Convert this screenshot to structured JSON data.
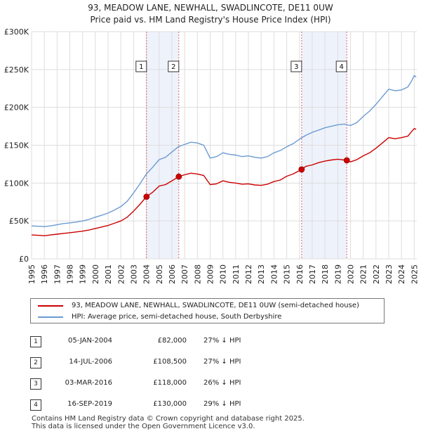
{
  "title_line1": "93, MEADOW LANE, NEWHALL, SWADLINCOTE, DE11 0UW",
  "title_line2": "Price paid vs. HM Land Registry's House Price Index (HPI)",
  "chart_data": {
    "type": "line",
    "xlim": [
      1995.0,
      2025.2
    ],
    "ylim": [
      0,
      300000
    ],
    "yticks": [
      0,
      50000,
      100000,
      150000,
      200000,
      250000,
      300000
    ],
    "ytick_labels": [
      "£0",
      "£50K",
      "£100K",
      "£150K",
      "£200K",
      "£250K",
      "£300K"
    ],
    "xticks": [
      1995,
      1996,
      1997,
      1998,
      1999,
      2000,
      2001,
      2002,
      2003,
      2004,
      2005,
      2006,
      2007,
      2008,
      2009,
      2010,
      2011,
      2012,
      2013,
      2014,
      2015,
      2016,
      2017,
      2018,
      2019,
      2020,
      2021,
      2022,
      2023,
      2024,
      2025
    ],
    "series": [
      {
        "name": "93, MEADOW LANE, NEWHALL, SWADLINCOTE, DE11 0UW (semi-detached house)",
        "color": "#cc0000",
        "points": [
          [
            1995.0,
            31500
          ],
          [
            1995.5,
            31000
          ],
          [
            1996.0,
            30500
          ],
          [
            1996.5,
            31500
          ],
          [
            1997.0,
            32500
          ],
          [
            1997.5,
            33500
          ],
          [
            1998.0,
            34500
          ],
          [
            1998.5,
            35500
          ],
          [
            1999.0,
            36500
          ],
          [
            1999.5,
            38000
          ],
          [
            2000.0,
            40000
          ],
          [
            2000.5,
            42000
          ],
          [
            2001.0,
            44000
          ],
          [
            2001.5,
            47000
          ],
          [
            2002.0,
            50000
          ],
          [
            2002.5,
            55000
          ],
          [
            2003.0,
            63000
          ],
          [
            2003.5,
            72000
          ],
          [
            2004.0,
            82000
          ],
          [
            2004.5,
            88000
          ],
          [
            2005.0,
            96000
          ],
          [
            2005.5,
            98000
          ],
          [
            2006.0,
            103000
          ],
          [
            2006.54,
            108500
          ],
          [
            2007.0,
            111000
          ],
          [
            2007.5,
            113000
          ],
          [
            2008.0,
            112000
          ],
          [
            2008.5,
            110000
          ],
          [
            2009.0,
            98000
          ],
          [
            2009.5,
            99000
          ],
          [
            2010.0,
            103000
          ],
          [
            2010.5,
            101000
          ],
          [
            2011.0,
            100000
          ],
          [
            2011.5,
            98500
          ],
          [
            2012.0,
            99000
          ],
          [
            2012.5,
            97500
          ],
          [
            2013.0,
            97000
          ],
          [
            2013.5,
            98500
          ],
          [
            2014.0,
            102000
          ],
          [
            2014.5,
            104000
          ],
          [
            2015.0,
            109000
          ],
          [
            2015.5,
            112000
          ],
          [
            2016.17,
            118000
          ],
          [
            2016.5,
            122000
          ],
          [
            2017.0,
            124000
          ],
          [
            2017.5,
            127000
          ],
          [
            2018.0,
            129000
          ],
          [
            2018.5,
            130500
          ],
          [
            2019.0,
            131500
          ],
          [
            2019.71,
            130000
          ],
          [
            2020.0,
            128000
          ],
          [
            2020.5,
            131000
          ],
          [
            2021.0,
            136000
          ],
          [
            2021.5,
            140000
          ],
          [
            2022.0,
            146000
          ],
          [
            2022.5,
            153000
          ],
          [
            2023.0,
            160000
          ],
          [
            2023.5,
            158500
          ],
          [
            2024.0,
            160000
          ],
          [
            2024.5,
            162000
          ],
          [
            2024.8,
            168000
          ],
          [
            2025.0,
            172000
          ],
          [
            2025.15,
            171000
          ]
        ]
      },
      {
        "name": "HPI: Average price, semi-detached house, South Derbyshire",
        "color": "#6b9bd2",
        "points": [
          [
            1995.0,
            43500
          ],
          [
            1995.5,
            43000
          ],
          [
            1996.0,
            42500
          ],
          [
            1996.5,
            43500
          ],
          [
            1997.0,
            45000
          ],
          [
            1997.5,
            46500
          ],
          [
            1998.0,
            47500
          ],
          [
            1998.5,
            48500
          ],
          [
            1999.0,
            50000
          ],
          [
            1999.5,
            52000
          ],
          [
            2000.0,
            55000
          ],
          [
            2000.5,
            57500
          ],
          [
            2001.0,
            60500
          ],
          [
            2001.5,
            64500
          ],
          [
            2002.0,
            69000
          ],
          [
            2002.5,
            76000
          ],
          [
            2003.0,
            87000
          ],
          [
            2003.5,
            99000
          ],
          [
            2004.0,
            112000
          ],
          [
            2004.5,
            121000
          ],
          [
            2005.0,
            131000
          ],
          [
            2005.5,
            134000
          ],
          [
            2006.0,
            141000
          ],
          [
            2006.5,
            148000
          ],
          [
            2007.0,
            151000
          ],
          [
            2007.5,
            154000
          ],
          [
            2008.0,
            153000
          ],
          [
            2008.5,
            150000
          ],
          [
            2009.0,
            133000
          ],
          [
            2009.5,
            135000
          ],
          [
            2010.0,
            140000
          ],
          [
            2010.5,
            138000
          ],
          [
            2011.0,
            137000
          ],
          [
            2011.5,
            135000
          ],
          [
            2012.0,
            136000
          ],
          [
            2012.5,
            134000
          ],
          [
            2013.0,
            133000
          ],
          [
            2013.5,
            135000
          ],
          [
            2014.0,
            140000
          ],
          [
            2014.5,
            143000
          ],
          [
            2015.0,
            148000
          ],
          [
            2015.5,
            152000
          ],
          [
            2016.0,
            158000
          ],
          [
            2016.5,
            163000
          ],
          [
            2017.0,
            167000
          ],
          [
            2017.5,
            170000
          ],
          [
            2018.0,
            173000
          ],
          [
            2018.5,
            175000
          ],
          [
            2019.0,
            177000
          ],
          [
            2019.5,
            178000
          ],
          [
            2020.0,
            176000
          ],
          [
            2020.5,
            180000
          ],
          [
            2021.0,
            188000
          ],
          [
            2021.5,
            195000
          ],
          [
            2022.0,
            204000
          ],
          [
            2022.5,
            214000
          ],
          [
            2023.0,
            224000
          ],
          [
            2023.5,
            222000
          ],
          [
            2024.0,
            223000
          ],
          [
            2024.5,
            227000
          ],
          [
            2024.8,
            235000
          ],
          [
            2025.0,
            242000
          ],
          [
            2025.15,
            240000
          ]
        ]
      }
    ],
    "transactions": [
      {
        "label": "1",
        "x": 2004.01,
        "price": 82000
      },
      {
        "label": "2",
        "x": 2006.54,
        "price": 108500
      },
      {
        "label": "3",
        "x": 2016.17,
        "price": 118000
      },
      {
        "label": "4",
        "x": 2019.71,
        "price": 130000
      }
    ],
    "shaded_spans": [
      [
        2004.01,
        2006.54
      ],
      [
        2016.17,
        2019.71
      ]
    ],
    "colors": {
      "grid": "#dddddd",
      "shade": "#eef2fb",
      "marker_line": "#e06666",
      "axis_text": "#222222",
      "box": "#333333"
    }
  },
  "legend": {
    "items": [
      {
        "label": "93, MEADOW LANE, NEWHALL, SWADLINCOTE, DE11 0UW (semi-detached house)",
        "color": "#cc0000"
      },
      {
        "label": "HPI: Average price, semi-detached house, South Derbyshire",
        "color": "#6b9bd2"
      }
    ]
  },
  "sales": [
    {
      "num": "1",
      "date": "05-JAN-2004",
      "price": "£82,000",
      "hpi": "27% ↓ HPI"
    },
    {
      "num": "2",
      "date": "14-JUL-2006",
      "price": "£108,500",
      "hpi": "27% ↓ HPI"
    },
    {
      "num": "3",
      "date": "03-MAR-2016",
      "price": "£118,000",
      "hpi": "26% ↓ HPI"
    },
    {
      "num": "4",
      "date": "16-SEP-2019",
      "price": "£130,000",
      "hpi": "29% ↓ HPI"
    }
  ],
  "footer": {
    "line1": "Contains HM Land Registry data © Crown copyright and database right 2025.",
    "line2": "This data is licensed under the Open Government Licence v3.0."
  }
}
